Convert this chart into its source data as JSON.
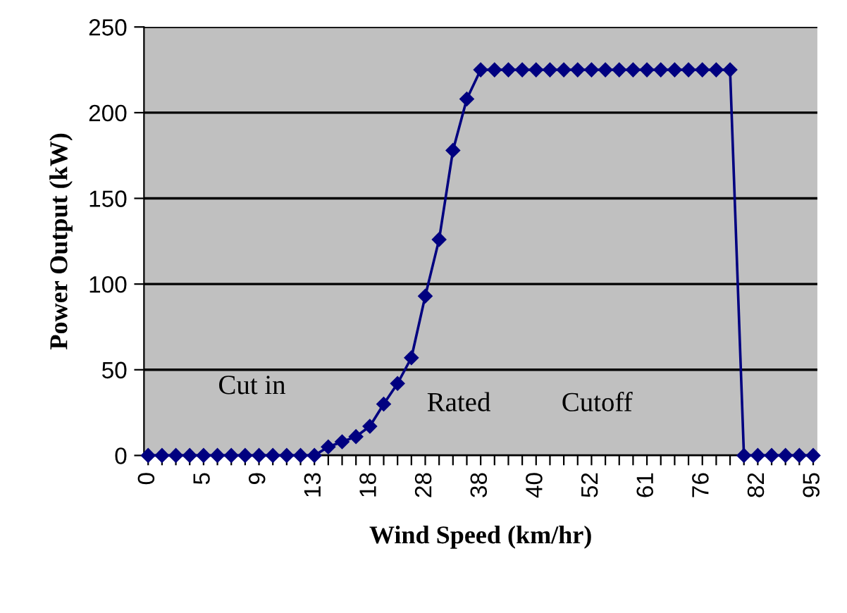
{
  "chart_data": {
    "type": "line",
    "xlabel": "Wind Speed (km/hr)",
    "ylabel": "Power Output (kW)",
    "categories": [
      "0",
      null,
      null,
      null,
      "5",
      null,
      null,
      null,
      "9",
      null,
      null,
      null,
      "13",
      null,
      null,
      null,
      "18",
      null,
      null,
      null,
      "28",
      null,
      null,
      null,
      "38",
      null,
      null,
      null,
      "40",
      null,
      null,
      null,
      "52",
      null,
      null,
      null,
      "61",
      null,
      null,
      null,
      "76",
      null,
      null,
      null,
      "82",
      null,
      null,
      null,
      "95"
    ],
    "series": [
      {
        "color": "#000080",
        "values": [
          0,
          0,
          0,
          0,
          0,
          0,
          0,
          0,
          0,
          0,
          0,
          0,
          0,
          5,
          8,
          11,
          17,
          30,
          42,
          57,
          93,
          126,
          178,
          208,
          225,
          225,
          225,
          225,
          225,
          225,
          225,
          225,
          225,
          225,
          225,
          225,
          225,
          225,
          225,
          225,
          225,
          225,
          225,
          0,
          0,
          0,
          0,
          0,
          0
        ]
      }
    ],
    "ylim": [
      0,
      250
    ],
    "yticks": [
      0,
      50,
      100,
      150,
      200,
      250
    ],
    "grid": "y",
    "legend": false,
    "marker": "diamond",
    "line_style": "solid",
    "annotations": [
      "Cut in",
      "Rated",
      "Cutoff"
    ]
  }
}
